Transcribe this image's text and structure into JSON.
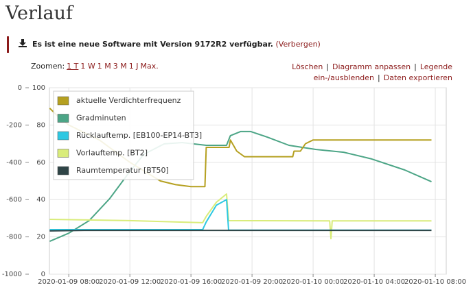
{
  "header": {
    "title": "Verlauf",
    "notice": {
      "text": "Es ist eine neue Software mit Version 9172R2 verfügbar.",
      "link": "(Verbergen)"
    },
    "zoom": {
      "label": "Zoomen:",
      "options": [
        "1 T",
        "1 W",
        "1 M",
        "3 M",
        "1 J",
        "Max."
      ]
    },
    "actions": {
      "separator": "|",
      "links": [
        "Löschen",
        "Diagramm anpassen",
        "Legende ein-/ausblenden",
        "Daten exportieren"
      ]
    }
  },
  "chart_data": {
    "type": "line",
    "legend": "upper left",
    "grid": true,
    "xlim": [
      "2020-01-09 06:44",
      "2020-01-10 08:43"
    ],
    "xticks": [
      "2020-01-09 08:00",
      "2020-01-09 12:00",
      "2020-01-09 16:00",
      "2020-01-09 20:00",
      "2020-01-10 00:00",
      "2020-01-10 04:00",
      "2020-01-10 08:00"
    ],
    "ylim": [
      0,
      100
    ],
    "yticks": [
      0,
      20,
      40,
      60,
      80,
      100
    ],
    "y2lim": [
      -1000,
      0
    ],
    "y2ticks": [
      0,
      -200,
      -400,
      -600,
      -800,
      -1000
    ],
    "series": [
      {
        "name": "Gradminuten",
        "color": "#4ca586",
        "axis": "y2",
        "x": [
          "2020-01-09 06:45",
          "2020-01-09 08:00",
          "2020-01-09 09:20",
          "2020-01-09 10:40",
          "2020-01-09 12:00",
          "2020-01-09 12:55",
          "2020-01-09 14:15",
          "2020-01-09 15:25",
          "2020-01-09 17:00",
          "2020-01-09 18:20",
          "2020-01-09 18:35",
          "2020-01-09 19:15",
          "2020-01-09 19:55",
          "2020-01-09 21:00",
          "2020-01-09 22:25",
          "2020-01-10 00:10",
          "2020-01-10 02:00",
          "2020-01-10 03:50",
          "2020-01-10 06:00",
          "2020-01-10 07:45"
        ],
        "values": [
          -824,
          -780,
          -713,
          -596,
          -449,
          -357,
          -301,
          -294,
          -309,
          -309,
          -257,
          -235,
          -235,
          -265,
          -309,
          -331,
          -346,
          -382,
          -441,
          -504
        ]
      },
      {
        "name": "aktuelle Verdichterfrequenz",
        "color": "#b5a020",
        "x": [
          "2020-01-09 06:45",
          "2020-01-09 07:15",
          "2020-01-09 08:00",
          "2020-01-09 09:00",
          "2020-01-09 10:00",
          "2020-01-09 11:00",
          "2020-01-09 12:00",
          "2020-01-09 13:00",
          "2020-01-09 14:00",
          "2020-01-09 15:00",
          "2020-01-09 16:00",
          "2020-01-09 16:55",
          "2020-01-09 17:00",
          "2020-01-09 18:30",
          "2020-01-09 18:35",
          "2020-01-09 19:00",
          "2020-01-09 19:30",
          "2020-01-09 22:40",
          "2020-01-09 22:45",
          "2020-01-09 23:10",
          "2020-01-09 23:30",
          "2020-01-10 00:00",
          "2020-01-10 07:45"
        ],
        "values": [
          89,
          85,
          80,
          76,
          72,
          66,
          60,
          55,
          50,
          48,
          47,
          47,
          68,
          68,
          72,
          66,
          63,
          63,
          66,
          66,
          70,
          72,
          72
        ]
      },
      {
        "name": "Vorlauftemp. [BT2]",
        "color": "#d9ec7a",
        "x": [
          "2020-01-09 06:45",
          "2020-01-09 12:00",
          "2020-01-09 16:46",
          "2020-01-09 17:00",
          "2020-01-09 17:40",
          "2020-01-09 18:20",
          "2020-01-09 18:28",
          "2020-01-10 01:05",
          "2020-01-10 01:10",
          "2020-01-10 01:15",
          "2020-01-10 07:45"
        ],
        "values": [
          29.4,
          28.7,
          27.6,
          31,
          38.6,
          43,
          28.7,
          28.6,
          19,
          28.6,
          28.6
        ]
      },
      {
        "name": "Rücklauftemp. [EB100-EP14-BT3]",
        "color": "#2ec8e2",
        "x": [
          "2020-01-09 06:45",
          "2020-01-09 16:46",
          "2020-01-09 17:00",
          "2020-01-09 17:40",
          "2020-01-09 18:20",
          "2020-01-09 18:28",
          "2020-01-10 07:45"
        ],
        "values": [
          23.9,
          23.9,
          28,
          37,
          40,
          23.6,
          23.6
        ]
      },
      {
        "name": "Raumtemperatur [BT50]",
        "color": "#2f4446",
        "x": [
          "2020-01-09 06:45",
          "2020-01-09 09:00",
          "2020-01-10 07:45"
        ],
        "values": [
          23.2,
          23.5,
          23.5
        ]
      }
    ]
  }
}
